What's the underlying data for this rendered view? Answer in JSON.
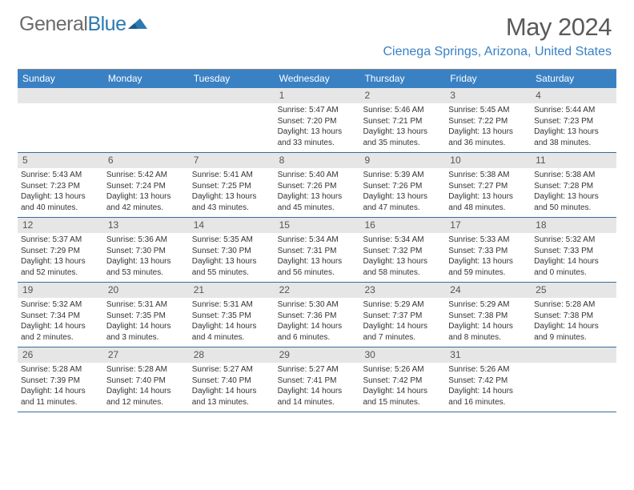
{
  "logo": {
    "text1": "General",
    "text2": "Blue"
  },
  "title": "May 2024",
  "location": "Cienega Springs, Arizona, United States",
  "dayHeaders": [
    "Sunday",
    "Monday",
    "Tuesday",
    "Wednesday",
    "Thursday",
    "Friday",
    "Saturday"
  ],
  "colors": {
    "header_bg": "#3a81c4",
    "location": "#3a81c4",
    "daynum_bg": "#e6e6e6",
    "row_border": "#3a6a9a"
  },
  "weeks": [
    [
      {
        "n": "",
        "sr": "",
        "ss": "",
        "dl": ""
      },
      {
        "n": "",
        "sr": "",
        "ss": "",
        "dl": ""
      },
      {
        "n": "",
        "sr": "",
        "ss": "",
        "dl": ""
      },
      {
        "n": "1",
        "sr": "Sunrise: 5:47 AM",
        "ss": "Sunset: 7:20 PM",
        "dl": "Daylight: 13 hours and 33 minutes."
      },
      {
        "n": "2",
        "sr": "Sunrise: 5:46 AM",
        "ss": "Sunset: 7:21 PM",
        "dl": "Daylight: 13 hours and 35 minutes."
      },
      {
        "n": "3",
        "sr": "Sunrise: 5:45 AM",
        "ss": "Sunset: 7:22 PM",
        "dl": "Daylight: 13 hours and 36 minutes."
      },
      {
        "n": "4",
        "sr": "Sunrise: 5:44 AM",
        "ss": "Sunset: 7:23 PM",
        "dl": "Daylight: 13 hours and 38 minutes."
      }
    ],
    [
      {
        "n": "5",
        "sr": "Sunrise: 5:43 AM",
        "ss": "Sunset: 7:23 PM",
        "dl": "Daylight: 13 hours and 40 minutes."
      },
      {
        "n": "6",
        "sr": "Sunrise: 5:42 AM",
        "ss": "Sunset: 7:24 PM",
        "dl": "Daylight: 13 hours and 42 minutes."
      },
      {
        "n": "7",
        "sr": "Sunrise: 5:41 AM",
        "ss": "Sunset: 7:25 PM",
        "dl": "Daylight: 13 hours and 43 minutes."
      },
      {
        "n": "8",
        "sr": "Sunrise: 5:40 AM",
        "ss": "Sunset: 7:26 PM",
        "dl": "Daylight: 13 hours and 45 minutes."
      },
      {
        "n": "9",
        "sr": "Sunrise: 5:39 AM",
        "ss": "Sunset: 7:26 PM",
        "dl": "Daylight: 13 hours and 47 minutes."
      },
      {
        "n": "10",
        "sr": "Sunrise: 5:38 AM",
        "ss": "Sunset: 7:27 PM",
        "dl": "Daylight: 13 hours and 48 minutes."
      },
      {
        "n": "11",
        "sr": "Sunrise: 5:38 AM",
        "ss": "Sunset: 7:28 PM",
        "dl": "Daylight: 13 hours and 50 minutes."
      }
    ],
    [
      {
        "n": "12",
        "sr": "Sunrise: 5:37 AM",
        "ss": "Sunset: 7:29 PM",
        "dl": "Daylight: 13 hours and 52 minutes."
      },
      {
        "n": "13",
        "sr": "Sunrise: 5:36 AM",
        "ss": "Sunset: 7:30 PM",
        "dl": "Daylight: 13 hours and 53 minutes."
      },
      {
        "n": "14",
        "sr": "Sunrise: 5:35 AM",
        "ss": "Sunset: 7:30 PM",
        "dl": "Daylight: 13 hours and 55 minutes."
      },
      {
        "n": "15",
        "sr": "Sunrise: 5:34 AM",
        "ss": "Sunset: 7:31 PM",
        "dl": "Daylight: 13 hours and 56 minutes."
      },
      {
        "n": "16",
        "sr": "Sunrise: 5:34 AM",
        "ss": "Sunset: 7:32 PM",
        "dl": "Daylight: 13 hours and 58 minutes."
      },
      {
        "n": "17",
        "sr": "Sunrise: 5:33 AM",
        "ss": "Sunset: 7:33 PM",
        "dl": "Daylight: 13 hours and 59 minutes."
      },
      {
        "n": "18",
        "sr": "Sunrise: 5:32 AM",
        "ss": "Sunset: 7:33 PM",
        "dl": "Daylight: 14 hours and 0 minutes."
      }
    ],
    [
      {
        "n": "19",
        "sr": "Sunrise: 5:32 AM",
        "ss": "Sunset: 7:34 PM",
        "dl": "Daylight: 14 hours and 2 minutes."
      },
      {
        "n": "20",
        "sr": "Sunrise: 5:31 AM",
        "ss": "Sunset: 7:35 PM",
        "dl": "Daylight: 14 hours and 3 minutes."
      },
      {
        "n": "21",
        "sr": "Sunrise: 5:31 AM",
        "ss": "Sunset: 7:35 PM",
        "dl": "Daylight: 14 hours and 4 minutes."
      },
      {
        "n": "22",
        "sr": "Sunrise: 5:30 AM",
        "ss": "Sunset: 7:36 PM",
        "dl": "Daylight: 14 hours and 6 minutes."
      },
      {
        "n": "23",
        "sr": "Sunrise: 5:29 AM",
        "ss": "Sunset: 7:37 PM",
        "dl": "Daylight: 14 hours and 7 minutes."
      },
      {
        "n": "24",
        "sr": "Sunrise: 5:29 AM",
        "ss": "Sunset: 7:38 PM",
        "dl": "Daylight: 14 hours and 8 minutes."
      },
      {
        "n": "25",
        "sr": "Sunrise: 5:28 AM",
        "ss": "Sunset: 7:38 PM",
        "dl": "Daylight: 14 hours and 9 minutes."
      }
    ],
    [
      {
        "n": "26",
        "sr": "Sunrise: 5:28 AM",
        "ss": "Sunset: 7:39 PM",
        "dl": "Daylight: 14 hours and 11 minutes."
      },
      {
        "n": "27",
        "sr": "Sunrise: 5:28 AM",
        "ss": "Sunset: 7:40 PM",
        "dl": "Daylight: 14 hours and 12 minutes."
      },
      {
        "n": "28",
        "sr": "Sunrise: 5:27 AM",
        "ss": "Sunset: 7:40 PM",
        "dl": "Daylight: 14 hours and 13 minutes."
      },
      {
        "n": "29",
        "sr": "Sunrise: 5:27 AM",
        "ss": "Sunset: 7:41 PM",
        "dl": "Daylight: 14 hours and 14 minutes."
      },
      {
        "n": "30",
        "sr": "Sunrise: 5:26 AM",
        "ss": "Sunset: 7:42 PM",
        "dl": "Daylight: 14 hours and 15 minutes."
      },
      {
        "n": "31",
        "sr": "Sunrise: 5:26 AM",
        "ss": "Sunset: 7:42 PM",
        "dl": "Daylight: 14 hours and 16 minutes."
      },
      {
        "n": "",
        "sr": "",
        "ss": "",
        "dl": ""
      }
    ]
  ]
}
